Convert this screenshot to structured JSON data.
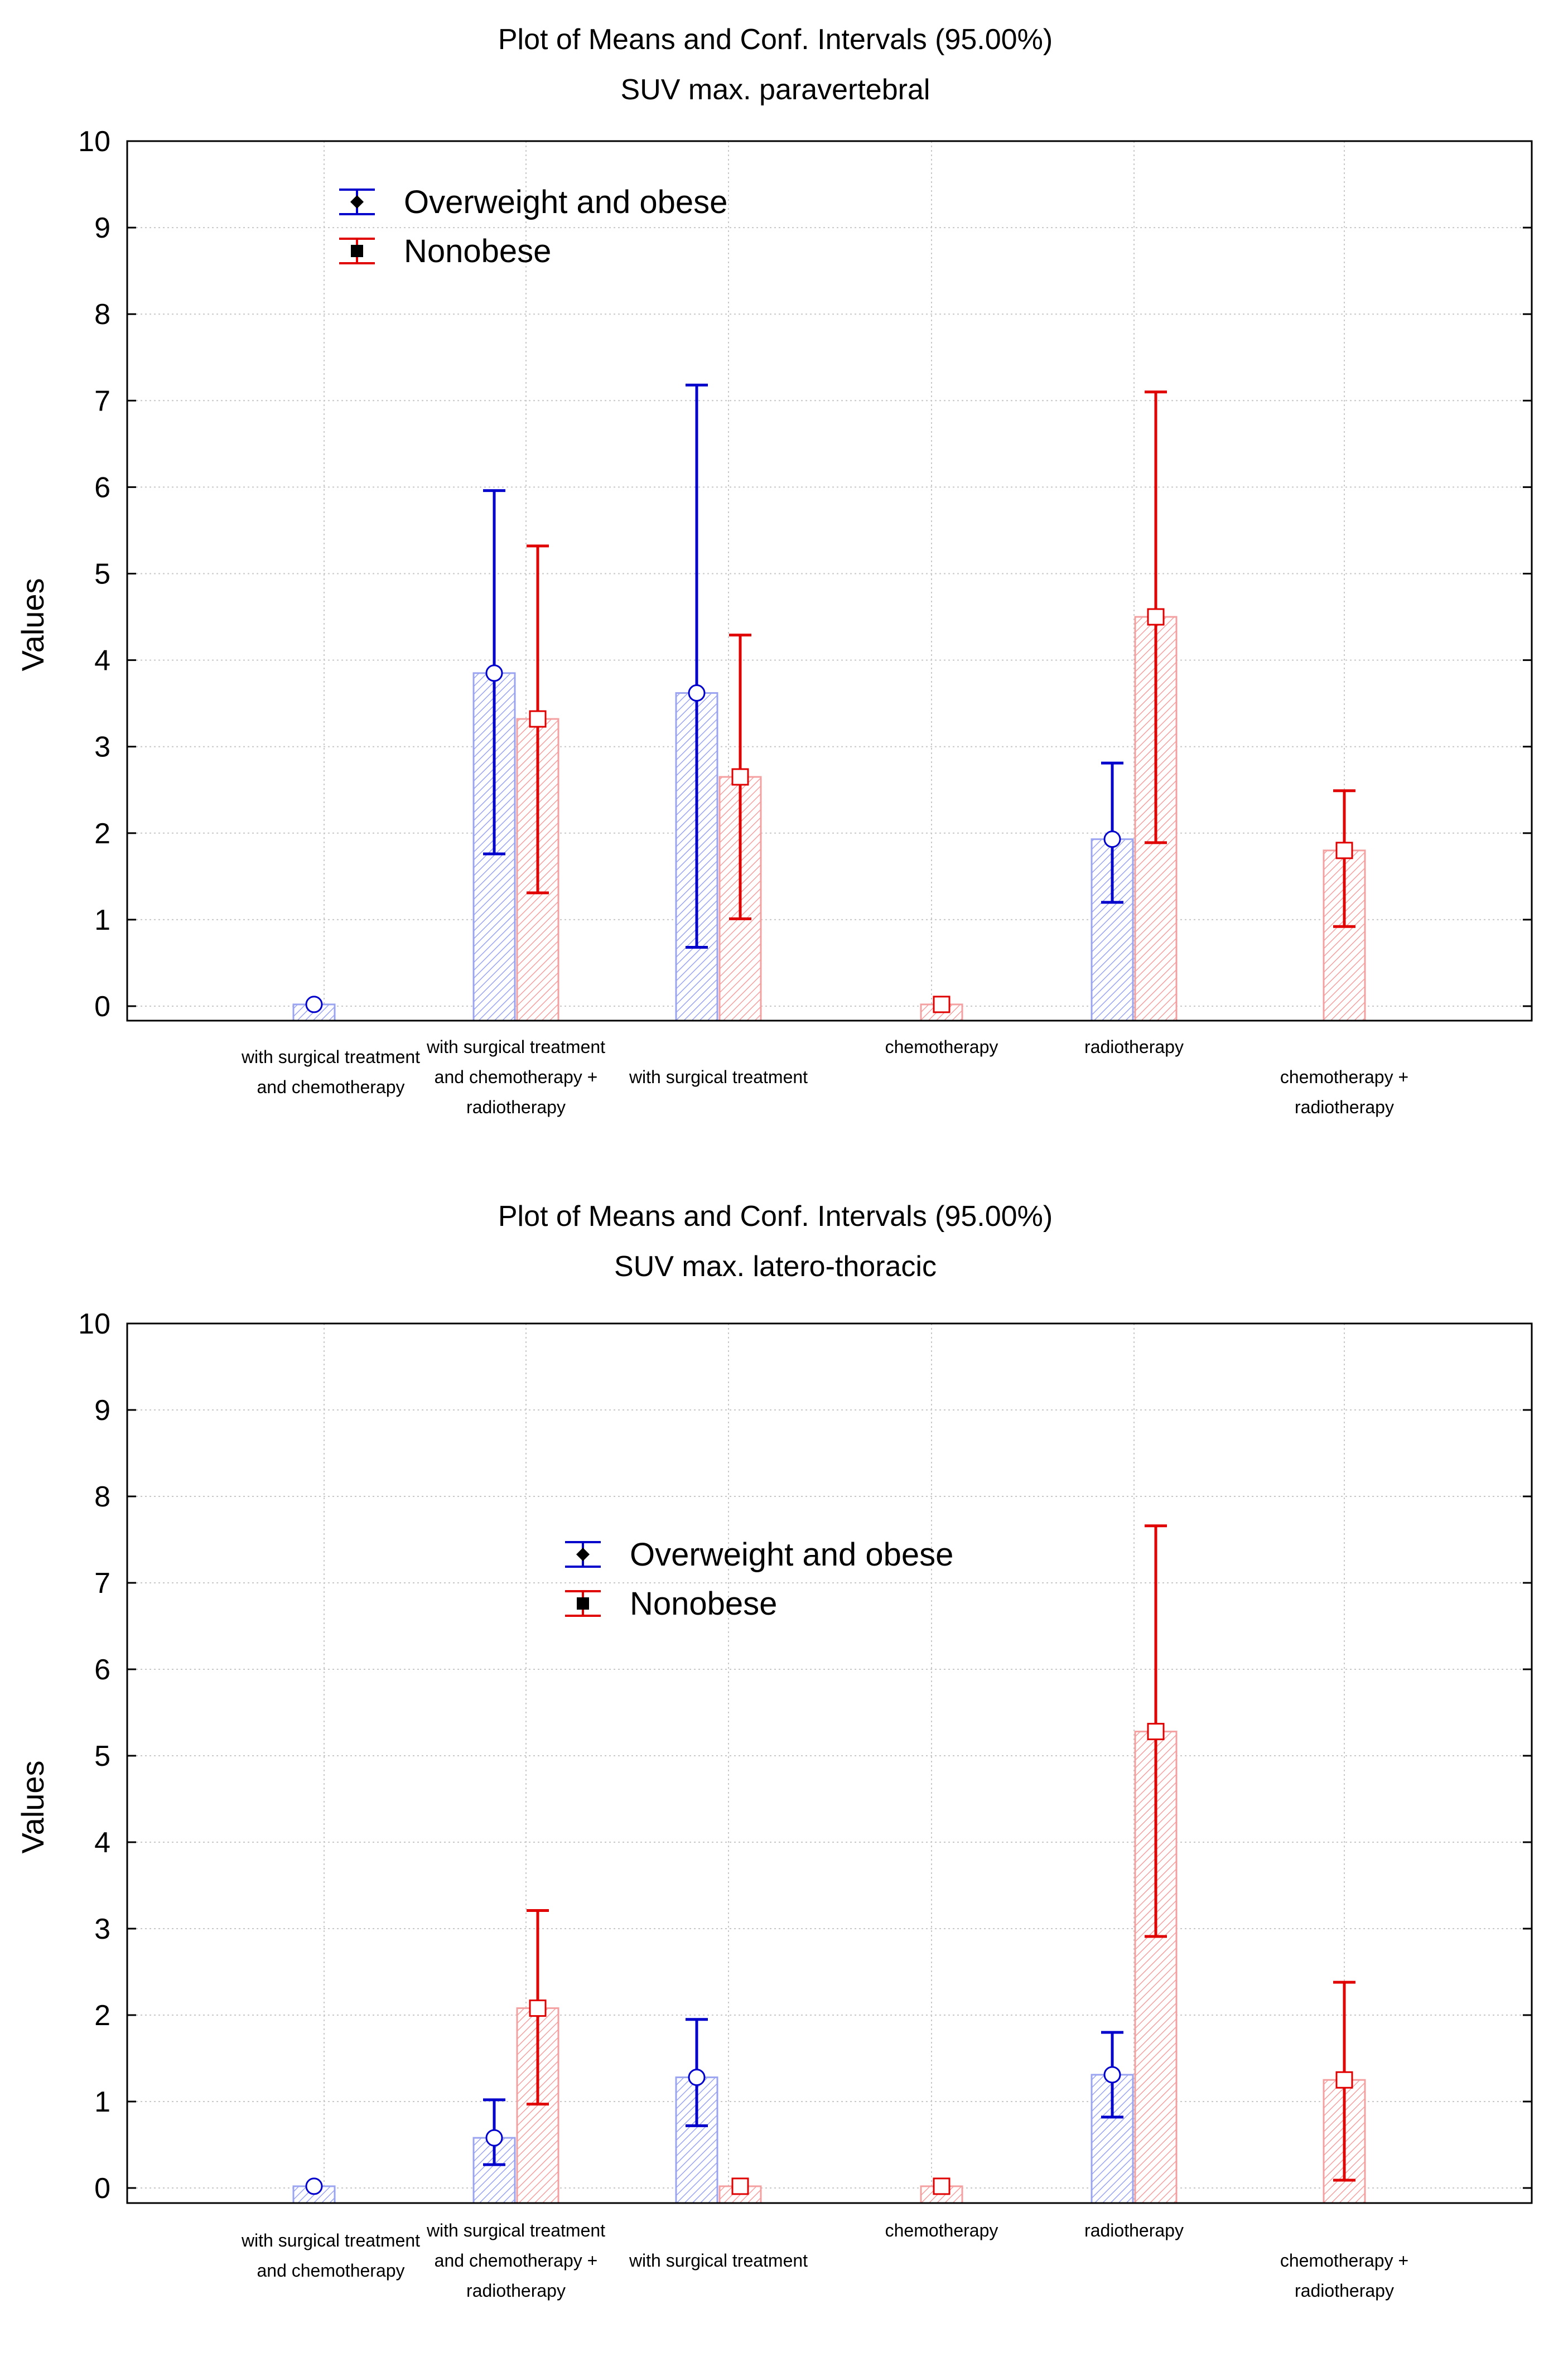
{
  "charts": [
    {
      "chart_data": {
        "type": "bar",
        "title": "Plot of Means and Conf. Intervals (95.00%)",
        "subtitle": "SUV max. paravertebral",
        "ylabel": "Values",
        "ylim": [
          0,
          10
        ],
        "yticks": [
          0,
          1,
          2,
          3,
          4,
          5,
          6,
          7,
          8,
          9,
          10
        ],
        "grid": true,
        "legend_position": "top-left",
        "categories": [
          [
            "with surgical treatment",
            "and chemotherapy"
          ],
          [
            "with surgical treatment",
            "and chemotherapy  +",
            "radiotherapy"
          ],
          [
            "with surgical treatment"
          ],
          [
            "chemotherapy"
          ],
          [
            "radiotherapy"
          ],
          [
            "chemotherapy  +",
            "radiotherapy"
          ]
        ],
        "series": [
          {
            "name": "Overweight and obese",
            "color": "#0000cc",
            "means": [
              0.02,
              3.85,
              3.62,
              null,
              1.93,
              null
            ],
            "ci_low": [
              null,
              1.76,
              0.68,
              null,
              1.2,
              null
            ],
            "ci_high": [
              null,
              5.96,
              7.18,
              null,
              2.81,
              null
            ]
          },
          {
            "name": "Nonobese",
            "color": "#e00000",
            "means": [
              null,
              3.32,
              2.65,
              0.02,
              4.5,
              1.8
            ],
            "ci_low": [
              null,
              1.31,
              1.01,
              null,
              1.89,
              0.92
            ],
            "ci_high": [
              null,
              5.32,
              4.29,
              null,
              7.1,
              2.49
            ]
          }
        ]
      }
    },
    {
      "chart_data": {
        "type": "bar",
        "title": "Plot of Means and Conf. Intervals (95.00%)",
        "subtitle": "SUV max. latero-thoracic",
        "ylabel": "Values",
        "ylim": [
          0,
          10
        ],
        "yticks": [
          0,
          1,
          2,
          3,
          4,
          5,
          6,
          7,
          8,
          9,
          10
        ],
        "grid": true,
        "legend_position": "upper-center",
        "categories": [
          [
            "with surgical treatment",
            "and chemotherapy"
          ],
          [
            "with surgical treatment",
            "and chemotherapy  +",
            "radiotherapy"
          ],
          [
            "with surgical treatment"
          ],
          [
            "chemotherapy"
          ],
          [
            "radiotherapy"
          ],
          [
            "chemotherapy  +",
            "radiotherapy"
          ]
        ],
        "series": [
          {
            "name": "Overweight and obese",
            "color": "#0000cc",
            "means": [
              0.02,
              0.58,
              1.28,
              null,
              1.31,
              null
            ],
            "ci_low": [
              null,
              0.27,
              0.72,
              null,
              0.82,
              null
            ],
            "ci_high": [
              null,
              1.02,
              1.95,
              null,
              1.8,
              null
            ]
          },
          {
            "name": "Nonobese",
            "color": "#e00000",
            "means": [
              null,
              2.08,
              0.02,
              0.02,
              5.28,
              1.25
            ],
            "ci_low": [
              null,
              0.97,
              null,
              null,
              2.91,
              0.09
            ],
            "ci_high": [
              null,
              3.21,
              null,
              null,
              7.66,
              2.38
            ]
          }
        ]
      }
    }
  ]
}
